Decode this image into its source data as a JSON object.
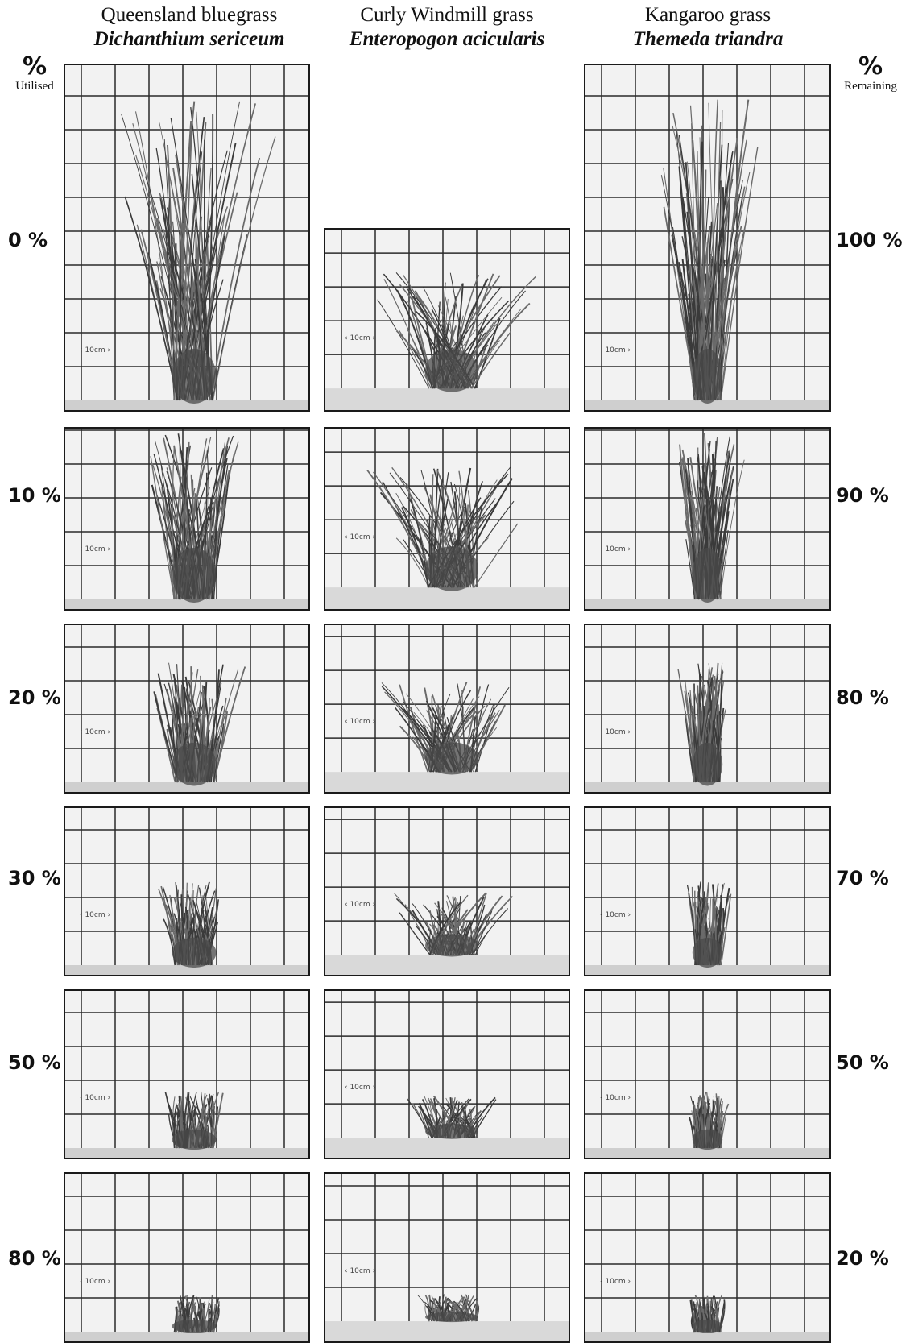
{
  "columns": [
    {
      "common": "Queensland bluegrass",
      "latin": "Dichanthium sericeum"
    },
    {
      "common": "Curly Windmill grass",
      "latin": "Enteropogon acicularis"
    },
    {
      "common": "Kangaroo grass",
      "latin": "Themeda triandra"
    }
  ],
  "left_axis": {
    "symbol": "%",
    "label": "Utilised"
  },
  "right_axis": {
    "symbol": "%",
    "label": "Remaining"
  },
  "rows": [
    {
      "utilised": "0 %",
      "remaining": "100 %"
    },
    {
      "utilised": "10 %",
      "remaining": "90 %"
    },
    {
      "utilised": "20 %",
      "remaining": "80 %"
    },
    {
      "utilised": "30 %",
      "remaining": "70 %"
    },
    {
      "utilised": "50 %",
      "remaining": "50 %"
    },
    {
      "utilised": "80 %",
      "remaining": "20 %"
    }
  ],
  "scale_marker": "10cm",
  "colors": {
    "background": "#ffffff",
    "panel_border": "#1a1a1a",
    "grid": "#2a2a2a",
    "board": "#ebebeb",
    "grass": "#3a3a3a"
  },
  "photo_content": "grass tussock photographed in front of a 10 cm grid board"
}
